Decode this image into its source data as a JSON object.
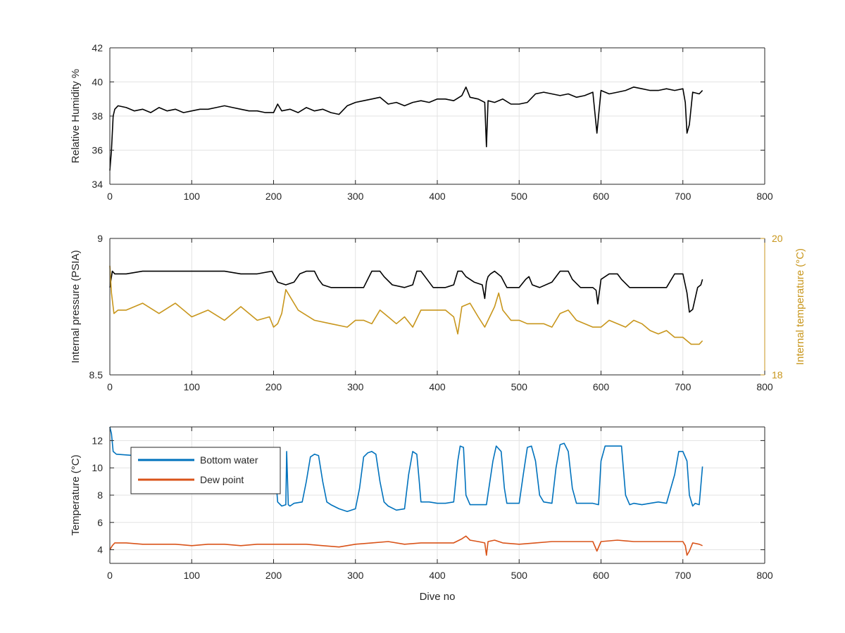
{
  "chart_data": [
    {
      "type": "line",
      "title": "",
      "xlabel": "",
      "ylabel": "Relative Humidity %",
      "xlim": [
        0,
        800
      ],
      "ylim": [
        34,
        42
      ],
      "xticks": [
        0,
        100,
        200,
        300,
        400,
        500,
        600,
        700,
        800
      ],
      "yticks": [
        34,
        36,
        38,
        40,
        42
      ],
      "grid": true,
      "series": [
        {
          "color": "#000000",
          "x": [
            0,
            2,
            4,
            6,
            10,
            20,
            30,
            40,
            50,
            60,
            70,
            80,
            90,
            100,
            110,
            120,
            130,
            140,
            150,
            160,
            170,
            180,
            190,
            200,
            205,
            210,
            220,
            230,
            240,
            250,
            260,
            270,
            280,
            290,
            300,
            310,
            320,
            330,
            340,
            350,
            360,
            370,
            380,
            390,
            400,
            410,
            420,
            430,
            435,
            440,
            450,
            458,
            460,
            462,
            470,
            480,
            490,
            500,
            510,
            520,
            530,
            540,
            550,
            560,
            570,
            580,
            590,
            595,
            600,
            610,
            620,
            630,
            640,
            650,
            660,
            670,
            680,
            690,
            700,
            703,
            705,
            708,
            712,
            720,
            724
          ],
          "values": [
            34.8,
            36.0,
            38.0,
            38.4,
            38.6,
            38.5,
            38.3,
            38.4,
            38.2,
            38.5,
            38.3,
            38.4,
            38.2,
            38.3,
            38.4,
            38.4,
            38.5,
            38.6,
            38.5,
            38.4,
            38.3,
            38.3,
            38.2,
            38.2,
            38.7,
            38.3,
            38.4,
            38.2,
            38.5,
            38.3,
            38.4,
            38.2,
            38.1,
            38.6,
            38.8,
            38.9,
            39.0,
            39.1,
            38.7,
            38.8,
            38.6,
            38.8,
            38.9,
            38.8,
            39.0,
            39.0,
            38.9,
            39.2,
            39.7,
            39.1,
            39.0,
            38.8,
            36.2,
            38.9,
            38.8,
            39.0,
            38.7,
            38.7,
            38.8,
            39.3,
            39.4,
            39.3,
            39.2,
            39.3,
            39.1,
            39.2,
            39.4,
            37.0,
            39.5,
            39.3,
            39.4,
            39.5,
            39.7,
            39.6,
            39.5,
            39.5,
            39.6,
            39.5,
            39.6,
            38.8,
            37.0,
            37.5,
            39.4,
            39.3,
            39.5
          ]
        }
      ]
    },
    {
      "type": "line",
      "title": "",
      "xlabel": "",
      "ylabel": "Internal pressure (PSIA)",
      "y2label": "Internal temperature (°C)",
      "xlim": [
        0,
        800
      ],
      "ylim": [
        8.5,
        9
      ],
      "y2lim": [
        18,
        20
      ],
      "xticks": [
        0,
        100,
        200,
        300,
        400,
        500,
        600,
        700,
        800
      ],
      "yticks": [
        8.5,
        9
      ],
      "y2ticks": [
        18,
        20
      ],
      "grid": true,
      "series": [
        {
          "color": "#000000",
          "axis": "left",
          "x": [
            0,
            3,
            6,
            10,
            20,
            40,
            60,
            80,
            100,
            120,
            140,
            160,
            180,
            198,
            205,
            215,
            225,
            232,
            240,
            250,
            255,
            260,
            270,
            290,
            310,
            320,
            330,
            335,
            345,
            360,
            370,
            375,
            380,
            385,
            395,
            410,
            420,
            425,
            430,
            435,
            445,
            455,
            458,
            460,
            462,
            465,
            470,
            478,
            485,
            500,
            508,
            512,
            516,
            525,
            540,
            550,
            560,
            565,
            575,
            590,
            594,
            596,
            600,
            610,
            620,
            625,
            635,
            650,
            670,
            680,
            690,
            700,
            705,
            708,
            712,
            718,
            722,
            724
          ],
          "values": [
            8.82,
            8.88,
            8.87,
            8.87,
            8.87,
            8.88,
            8.88,
            8.88,
            8.88,
            8.88,
            8.88,
            8.87,
            8.87,
            8.88,
            8.84,
            8.83,
            8.84,
            8.87,
            8.88,
            8.88,
            8.85,
            8.83,
            8.82,
            8.82,
            8.82,
            8.88,
            8.88,
            8.86,
            8.83,
            8.82,
            8.83,
            8.88,
            8.88,
            8.86,
            8.82,
            8.82,
            8.83,
            8.88,
            8.88,
            8.86,
            8.84,
            8.83,
            8.78,
            8.84,
            8.86,
            8.87,
            8.88,
            8.86,
            8.82,
            8.82,
            8.85,
            8.86,
            8.83,
            8.82,
            8.84,
            8.88,
            8.88,
            8.85,
            8.82,
            8.82,
            8.81,
            8.76,
            8.85,
            8.87,
            8.87,
            8.85,
            8.82,
            8.82,
            8.82,
            8.82,
            8.87,
            8.87,
            8.8,
            8.73,
            8.74,
            8.82,
            8.83,
            8.85
          ]
        },
        {
          "color": "#c8961c",
          "axis": "right",
          "x": [
            0,
            2,
            5,
            10,
            20,
            40,
            60,
            80,
            100,
            120,
            140,
            160,
            180,
            195,
            200,
            205,
            210,
            215,
            230,
            250,
            270,
            290,
            300,
            310,
            320,
            330,
            340,
            350,
            360,
            370,
            380,
            395,
            410,
            420,
            425,
            430,
            440,
            450,
            458,
            470,
            475,
            480,
            490,
            500,
            510,
            520,
            530,
            540,
            550,
            560,
            570,
            580,
            590,
            600,
            610,
            620,
            630,
            640,
            650,
            660,
            670,
            680,
            690,
            700,
            705,
            710,
            715,
            720,
            724
          ],
          "values": [
            19.6,
            19.2,
            18.9,
            18.95,
            18.95,
            19.05,
            18.9,
            19.05,
            18.85,
            18.95,
            18.8,
            19.0,
            18.8,
            18.85,
            18.7,
            18.75,
            18.9,
            19.25,
            18.95,
            18.8,
            18.75,
            18.7,
            18.8,
            18.8,
            18.75,
            18.95,
            18.85,
            18.75,
            18.85,
            18.7,
            18.95,
            18.95,
            18.95,
            18.85,
            18.6,
            19.0,
            19.05,
            18.85,
            18.7,
            19.0,
            19.2,
            18.95,
            18.8,
            18.8,
            18.75,
            18.75,
            18.75,
            18.7,
            18.9,
            18.95,
            18.8,
            18.75,
            18.7,
            18.7,
            18.8,
            18.75,
            18.7,
            18.8,
            18.75,
            18.65,
            18.6,
            18.65,
            18.55,
            18.55,
            18.5,
            18.45,
            18.45,
            18.45,
            18.5
          ]
        }
      ]
    },
    {
      "type": "line",
      "title": "",
      "xlabel": "Dive no",
      "ylabel": "Temperature (°C)",
      "xlim": [
        0,
        800
      ],
      "ylim": [
        3,
        13
      ],
      "xticks": [
        0,
        100,
        200,
        300,
        400,
        500,
        600,
        700,
        800
      ],
      "yticks": [
        4,
        6,
        8,
        10,
        12
      ],
      "grid": true,
      "legend": "top-left",
      "series": [
        {
          "name": "Bottom water",
          "color": "#0072bd",
          "x": [
            0,
            2,
            4,
            8,
            30,
            60,
            100,
            150,
            190,
            200,
            203,
            205,
            210,
            215,
            216,
            218,
            220,
            225,
            235,
            240,
            245,
            250,
            255,
            260,
            265,
            270,
            280,
            290,
            300,
            305,
            310,
            315,
            320,
            325,
            330,
            335,
            340,
            350,
            360,
            365,
            370,
            375,
            378,
            380,
            385,
            390,
            400,
            410,
            420,
            425,
            428,
            432,
            435,
            440,
            450,
            460,
            468,
            472,
            478,
            482,
            485,
            490,
            500,
            505,
            510,
            515,
            520,
            525,
            530,
            540,
            545,
            550,
            555,
            560,
            565,
            570,
            580,
            590,
            597,
            600,
            605,
            615,
            625,
            630,
            635,
            640,
            650,
            660,
            670,
            680,
            690,
            695,
            700,
            705,
            708,
            712,
            715,
            720,
            724
          ],
          "values": [
            13.0,
            12.5,
            11.2,
            11.0,
            10.9,
            10.9,
            10.9,
            10.9,
            10.9,
            10.9,
            9.0,
            7.5,
            7.2,
            7.3,
            11.2,
            7.3,
            7.2,
            7.4,
            7.5,
            9.0,
            10.8,
            11.0,
            10.9,
            9.0,
            7.5,
            7.3,
            7.0,
            6.8,
            7.0,
            8.5,
            10.8,
            11.1,
            11.2,
            11.0,
            9.0,
            7.5,
            7.2,
            6.9,
            7.0,
            9.5,
            11.2,
            11.0,
            9.0,
            7.5,
            7.5,
            7.5,
            7.4,
            7.4,
            7.5,
            10.5,
            11.6,
            11.5,
            8.0,
            7.3,
            7.3,
            7.3,
            10.5,
            11.6,
            11.2,
            8.5,
            7.4,
            7.4,
            7.4,
            9.5,
            11.5,
            11.6,
            10.5,
            8.0,
            7.5,
            7.4,
            10.0,
            11.7,
            11.8,
            11.2,
            8.5,
            7.4,
            7.4,
            7.4,
            7.3,
            10.5,
            11.6,
            11.6,
            11.6,
            8.0,
            7.3,
            7.4,
            7.3,
            7.4,
            7.5,
            7.4,
            9.5,
            11.2,
            11.2,
            10.5,
            8.0,
            7.2,
            7.4,
            7.3,
            10.1
          ]
        },
        {
          "name": "Dew point",
          "color": "#d95319",
          "x": [
            0,
            3,
            6,
            10,
            20,
            40,
            60,
            80,
            100,
            120,
            140,
            160,
            180,
            200,
            220,
            240,
            260,
            280,
            300,
            320,
            340,
            360,
            380,
            400,
            420,
            430,
            435,
            440,
            450,
            458,
            460,
            462,
            470,
            480,
            500,
            520,
            540,
            560,
            580,
            590,
            595,
            600,
            620,
            640,
            660,
            680,
            700,
            703,
            705,
            708,
            712,
            720,
            724
          ],
          "values": [
            4.0,
            4.3,
            4.5,
            4.5,
            4.5,
            4.4,
            4.4,
            4.4,
            4.3,
            4.4,
            4.4,
            4.3,
            4.4,
            4.4,
            4.4,
            4.4,
            4.3,
            4.2,
            4.4,
            4.5,
            4.6,
            4.4,
            4.5,
            4.5,
            4.5,
            4.8,
            5.0,
            4.7,
            4.6,
            4.5,
            3.6,
            4.6,
            4.7,
            4.5,
            4.4,
            4.5,
            4.6,
            4.6,
            4.6,
            4.6,
            3.9,
            4.6,
            4.7,
            4.6,
            4.6,
            4.6,
            4.6,
            4.3,
            3.6,
            3.9,
            4.5,
            4.4,
            4.3
          ]
        }
      ]
    }
  ]
}
